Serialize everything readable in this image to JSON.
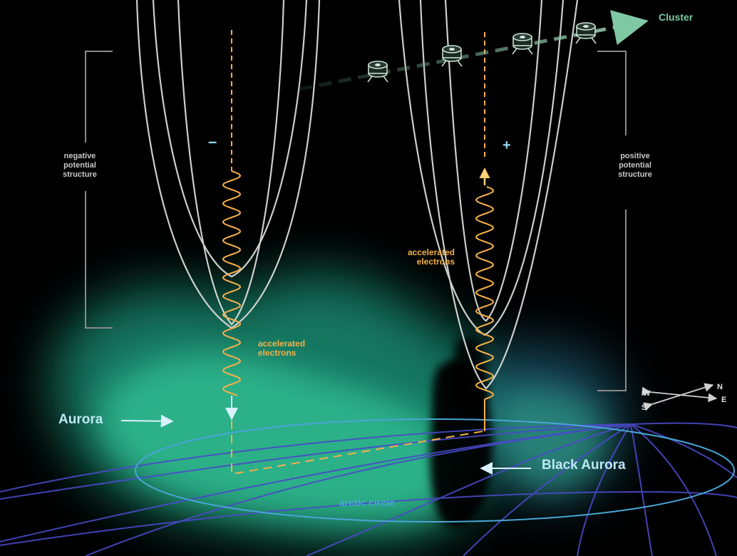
{
  "labels": {
    "cluster": "Cluster",
    "negative_line1": "negative",
    "negative_line2": "potential",
    "negative_line3": "structure",
    "positive_line1": "positive",
    "positive_line2": "potential",
    "positive_line3": "structure",
    "minus_sign": "–",
    "plus_sign": "+",
    "accel_left_line1": "accelerated",
    "accel_left_line2": "electrons",
    "accel_right_line1": "accelerated",
    "accel_right_line2": "electrons",
    "aurora": "Aurora",
    "black_aurora": "Black Aurora",
    "arctic_circle": "arctic circle",
    "compass_w": "W",
    "compass_n": "N",
    "compass_s": "S",
    "compass_e": "E"
  },
  "colors": {
    "background": "#000000",
    "field_lines": "#d9d9d9",
    "electrons": "#f5b04a",
    "aurora_glow": "#34d8a0",
    "cluster_track": "#9ed4b8",
    "structure_text": "#c8c8c8",
    "aurora_label": "#bde8f5",
    "arctic_circle": "#49a6d6",
    "globe_grid": "#4a4ac8",
    "sign_color": "#8fd8f0"
  },
  "icons": [
    "cluster-satellite-icon",
    "compass-icon"
  ]
}
